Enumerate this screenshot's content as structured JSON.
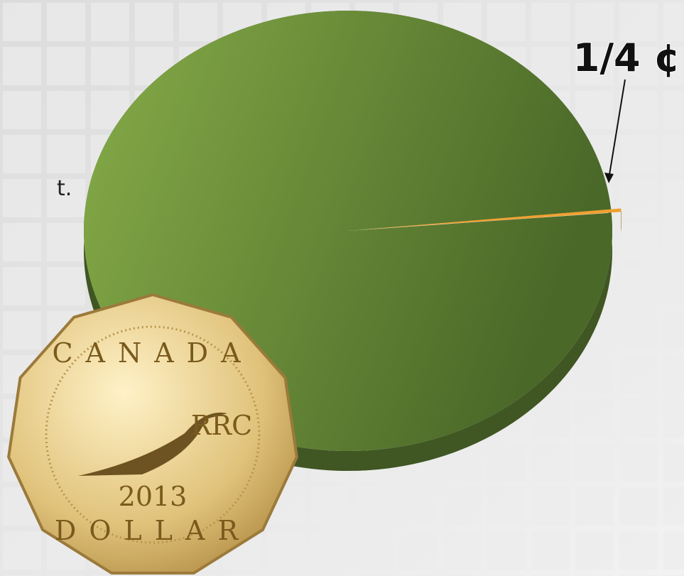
{
  "chart_data": {
    "type": "pie",
    "values": [
      99.75,
      0.25
    ],
    "value_labels": [
      null,
      "1/4 ¢"
    ],
    "colors": [
      "#6b8f3a",
      "#f0a030"
    ]
  },
  "side_text": "t.",
  "coin": {
    "top": "CANADA",
    "bottom": "DOLLAR",
    "year": "2013",
    "mint": "RRC"
  }
}
